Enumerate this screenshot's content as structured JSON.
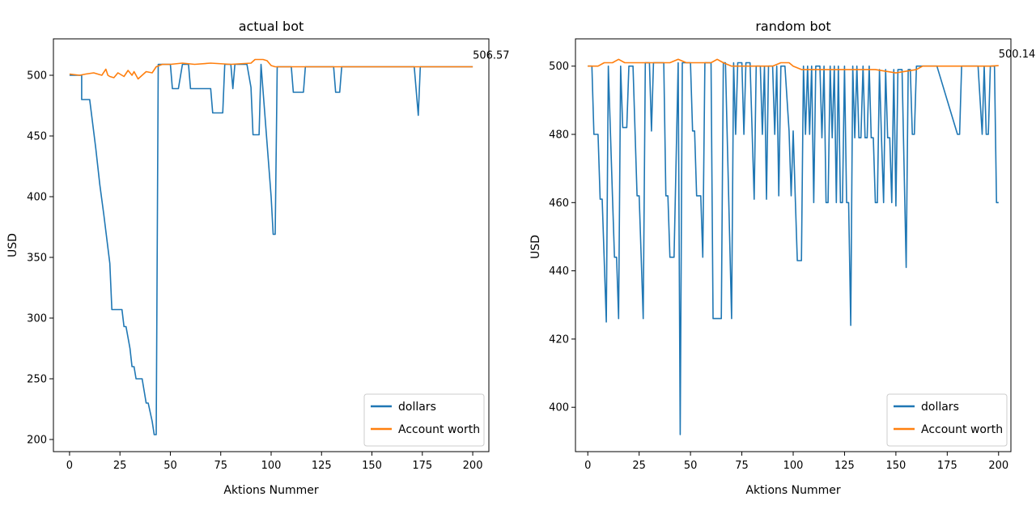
{
  "chart_data": [
    {
      "type": "line",
      "title": "actual bot",
      "xlabel": "Aktions Nummer",
      "ylabel": "USD",
      "xlim": [
        -8,
        208
      ],
      "ylim": [
        190,
        530
      ],
      "xticks": [
        0,
        25,
        50,
        75,
        100,
        125,
        150,
        175,
        200
      ],
      "yticks": [
        200,
        250,
        300,
        350,
        400,
        450,
        500
      ],
      "legend_position": "bottom-right",
      "end_label": "506.57",
      "end_label_value": [
        200,
        507
      ],
      "series": [
        {
          "name": "dollars",
          "color": "#1f77b4",
          "points": [
            [
              0,
              500
            ],
            [
              6,
              500
            ],
            [
              6,
              480
            ],
            [
              10,
              480
            ],
            [
              13,
              440
            ],
            [
              15,
              410
            ],
            [
              17,
              385
            ],
            [
              20,
              345
            ],
            [
              21,
              307
            ],
            [
              26,
              307
            ],
            [
              27,
              293
            ],
            [
              28,
              293
            ],
            [
              30,
              275
            ],
            [
              31,
              260
            ],
            [
              32,
              260
            ],
            [
              33,
              250
            ],
            [
              36,
              250
            ],
            [
              37,
              240
            ],
            [
              38,
              230
            ],
            [
              39,
              230
            ],
            [
              41,
              215
            ],
            [
              42,
              204
            ],
            [
              43,
              204
            ],
            [
              44,
              509
            ],
            [
              50,
              509
            ],
            [
              51,
              489
            ],
            [
              54,
              489
            ],
            [
              56,
              509
            ],
            [
              59,
              509
            ],
            [
              60,
              489
            ],
            [
              70,
              489
            ],
            [
              71,
              469
            ],
            [
              76,
              469
            ],
            [
              77,
              509
            ],
            [
              80,
              509
            ],
            [
              81,
              489
            ],
            [
              82,
              509
            ],
            [
              88,
              509
            ],
            [
              90,
              490
            ],
            [
              91,
              451
            ],
            [
              94,
              451
            ],
            [
              95,
              509
            ],
            [
              100,
              400
            ],
            [
              101,
              369
            ],
            [
              102,
              369
            ],
            [
              103,
              507
            ],
            [
              110,
              507
            ],
            [
              111,
              486
            ],
            [
              116,
              486
            ],
            [
              117,
              507
            ],
            [
              131,
              507
            ],
            [
              132,
              486
            ],
            [
              134,
              486
            ],
            [
              135,
              507
            ],
            [
              171,
              507
            ],
            [
              173,
              467
            ],
            [
              174,
              507
            ],
            [
              200,
              507
            ]
          ]
        },
        {
          "name": "Account worth",
          "color": "#ff7f0e",
          "points": [
            [
              0,
              501
            ],
            [
              5,
              500
            ],
            [
              8,
              501
            ],
            [
              12,
              502
            ],
            [
              16,
              500
            ],
            [
              18,
              505
            ],
            [
              19,
              500
            ],
            [
              20,
              499
            ],
            [
              22,
              498
            ],
            [
              24,
              502
            ],
            [
              27,
              499
            ],
            [
              29,
              504
            ],
            [
              31,
              500
            ],
            [
              32,
              503
            ],
            [
              34,
              497
            ],
            [
              36,
              500
            ],
            [
              38,
              503
            ],
            [
              41,
              502
            ],
            [
              43,
              507
            ],
            [
              46,
              509
            ],
            [
              50,
              509
            ],
            [
              56,
              510
            ],
            [
              62,
              509
            ],
            [
              70,
              510
            ],
            [
              80,
              509
            ],
            [
              90,
              510
            ],
            [
              92,
              513
            ],
            [
              96,
              513
            ],
            [
              98,
              512
            ],
            [
              100,
              508
            ],
            [
              102,
              507
            ],
            [
              120,
              507
            ],
            [
              160,
              507
            ],
            [
              200,
              507
            ]
          ]
        }
      ]
    },
    {
      "type": "line",
      "title": "random bot",
      "xlabel": "Aktions Nummer",
      "ylabel": "USD",
      "xlim": [
        -6,
        206
      ],
      "ylim": [
        387,
        508
      ],
      "xticks": [
        0,
        25,
        50,
        75,
        100,
        125,
        150,
        175,
        200
      ],
      "yticks": [
        400,
        420,
        440,
        460,
        480,
        500
      ],
      "legend_position": "bottom-right",
      "end_label": "500.14",
      "end_label_value": [
        200,
        500.14
      ],
      "series": [
        {
          "name": "dollars",
          "color": "#1f77b4",
          "points": [
            [
              0,
              500
            ],
            [
              2,
              500
            ],
            [
              3,
              480
            ],
            [
              5,
              480
            ],
            [
              6,
              461
            ],
            [
              7,
              461
            ],
            [
              9,
              425
            ],
            [
              10,
              500
            ],
            [
              12,
              462
            ],
            [
              13,
              444
            ],
            [
              14,
              444
            ],
            [
              15,
              426
            ],
            [
              16,
              500
            ],
            [
              17,
              482
            ],
            [
              19,
              482
            ],
            [
              20,
              500
            ],
            [
              22,
              500
            ],
            [
              24,
              462
            ],
            [
              25,
              462
            ],
            [
              27,
              426
            ],
            [
              28,
              501
            ],
            [
              30,
              501
            ],
            [
              31,
              481
            ],
            [
              32,
              501
            ],
            [
              37,
              501
            ],
            [
              38,
              462
            ],
            [
              39,
              462
            ],
            [
              40,
              444
            ],
            [
              42,
              444
            ],
            [
              44,
              501
            ],
            [
              45,
              392
            ],
            [
              46,
              501
            ],
            [
              50,
              501
            ],
            [
              51,
              481
            ],
            [
              52,
              481
            ],
            [
              53,
              462
            ],
            [
              55,
              462
            ],
            [
              56,
              444
            ],
            [
              57,
              501
            ],
            [
              60,
              501
            ],
            [
              61,
              426
            ],
            [
              65,
              426
            ],
            [
              66,
              501
            ],
            [
              67,
              501
            ],
            [
              70,
              426
            ],
            [
              71,
              501
            ],
            [
              72,
              480
            ],
            [
              73,
              501
            ],
            [
              75,
              501
            ],
            [
              76,
              480
            ],
            [
              77,
              501
            ],
            [
              79,
              501
            ],
            [
              81,
              461
            ],
            [
              82,
              500
            ],
            [
              84,
              500
            ],
            [
              85,
              480
            ],
            [
              86,
              500
            ],
            [
              87,
              461
            ],
            [
              88,
              500
            ],
            [
              90,
              500
            ],
            [
              91,
              480
            ],
            [
              92,
              500
            ],
            [
              93,
              462
            ],
            [
              94,
              500
            ],
            [
              96,
              500
            ],
            [
              98,
              481
            ],
            [
              99,
              462
            ],
            [
              100,
              481
            ],
            [
              101,
              462
            ],
            [
              102,
              443
            ],
            [
              104,
              443
            ],
            [
              105,
              500
            ],
            [
              106,
              480
            ],
            [
              107,
              500
            ],
            [
              108,
              480
            ],
            [
              109,
              500
            ],
            [
              110,
              460
            ],
            [
              111,
              500
            ],
            [
              113,
              500
            ],
            [
              114,
              479
            ],
            [
              115,
              500
            ],
            [
              116,
              460
            ],
            [
              117,
              460
            ],
            [
              118,
              500
            ],
            [
              119,
              479
            ],
            [
              120,
              500
            ],
            [
              121,
              460
            ],
            [
              122,
              500
            ],
            [
              123,
              460
            ],
            [
              124,
              460
            ],
            [
              125,
              500
            ],
            [
              126,
              460
            ],
            [
              127,
              460
            ],
            [
              128,
              424
            ],
            [
              129,
              500
            ],
            [
              130,
              479
            ],
            [
              131,
              500
            ],
            [
              132,
              479
            ],
            [
              133,
              479
            ],
            [
              134,
              500
            ],
            [
              135,
              479
            ],
            [
              136,
              479
            ],
            [
              137,
              500
            ],
            [
              138,
              479
            ],
            [
              139,
              479
            ],
            [
              140,
              460
            ],
            [
              141,
              460
            ],
            [
              142,
              499
            ],
            [
              143,
              479
            ],
            [
              144,
              460
            ],
            [
              145,
              499
            ],
            [
              146,
              479
            ],
            [
              147,
              479
            ],
            [
              148,
              460
            ],
            [
              149,
              499
            ],
            [
              150,
              459
            ],
            [
              151,
              499
            ],
            [
              153,
              499
            ],
            [
              155,
              441
            ],
            [
              156,
              499
            ],
            [
              157,
              499
            ],
            [
              158,
              480
            ],
            [
              159,
              480
            ],
            [
              160,
              500
            ],
            [
              170,
              500
            ],
            [
              180,
              480
            ],
            [
              181,
              480
            ],
            [
              182,
              500
            ],
            [
              190,
              500
            ],
            [
              192,
              480
            ],
            [
              193,
              500
            ],
            [
              194,
              480
            ],
            [
              195,
              480
            ],
            [
              196,
              500
            ],
            [
              198,
              500
            ],
            [
              199,
              460
            ],
            [
              200,
              460
            ]
          ]
        },
        {
          "name": "Account worth",
          "color": "#ff7f0e",
          "points": [
            [
              0,
              500
            ],
            [
              3,
              500
            ],
            [
              5,
              500
            ],
            [
              8,
              501
            ],
            [
              12,
              501
            ],
            [
              15,
              502
            ],
            [
              18,
              501
            ],
            [
              22,
              501
            ],
            [
              28,
              501
            ],
            [
              34,
              501
            ],
            [
              40,
              501
            ],
            [
              44,
              502
            ],
            [
              48,
              501
            ],
            [
              55,
              501
            ],
            [
              60,
              501
            ],
            [
              63,
              502
            ],
            [
              66,
              501
            ],
            [
              70,
              500
            ],
            [
              80,
              500
            ],
            [
              90,
              500
            ],
            [
              94,
              501
            ],
            [
              98,
              501
            ],
            [
              100,
              500
            ],
            [
              104,
              499
            ],
            [
              110,
              499
            ],
            [
              120,
              499
            ],
            [
              130,
              499
            ],
            [
              140,
              499
            ],
            [
              150,
              498
            ],
            [
              160,
              499
            ],
            [
              163,
              500
            ],
            [
              170,
              500
            ],
            [
              180,
              500
            ],
            [
              190,
              500
            ],
            [
              196,
              500
            ],
            [
              200,
              500.14
            ]
          ]
        }
      ]
    }
  ]
}
